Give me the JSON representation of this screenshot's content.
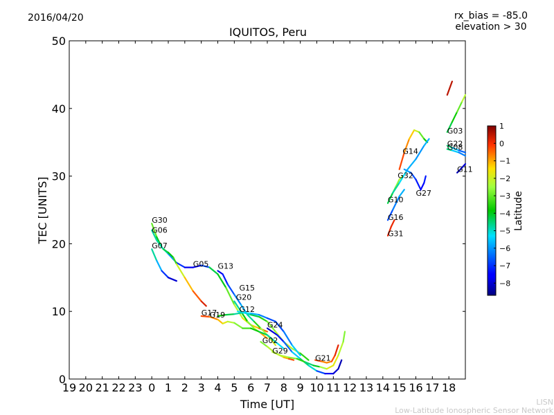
{
  "chart_data": {
    "type": "line",
    "date": "2016/04/20",
    "title": "IQUITOS, Peru",
    "annotation_lines": [
      "rx_bias = -85.0",
      "elevation > 30"
    ],
    "xlabel": "Time [UT]",
    "ylabel": "TEC [UNITS]",
    "xlim": [
      19,
      43
    ],
    "ylim": [
      0,
      50
    ],
    "x_ticks": [
      19,
      20,
      21,
      22,
      23,
      24,
      25,
      26,
      27,
      28,
      29,
      30,
      31,
      32,
      33,
      34,
      35,
      36,
      37,
      38,
      39,
      40,
      41,
      42
    ],
    "x_tick_labels": [
      "19",
      "20",
      "21",
      "22",
      "23",
      "0",
      "1",
      "2",
      "3",
      "4",
      "5",
      "6",
      "7",
      "8",
      "9",
      "10",
      "11",
      "12",
      "13",
      "14",
      "15",
      "16",
      "17",
      "18"
    ],
    "y_ticks": [
      0,
      10,
      20,
      30,
      40,
      50
    ],
    "y_tick_labels": [
      "0",
      "10",
      "20",
      "30",
      "40",
      "50"
    ],
    "colorbar": {
      "label": "Latitude",
      "range": [
        -8.7,
        1
      ],
      "ticks": [
        1,
        0,
        -1,
        -2,
        -3,
        -4,
        -5,
        -6,
        -7,
        -8
      ],
      "tick_labels": [
        "1",
        "0",
        "−1",
        "−2",
        "−3",
        "−4",
        "−5",
        "−6",
        "−7",
        "−8"
      ]
    },
    "series": [
      {
        "name": "G30",
        "label_at": [
          24.0,
          23.0
        ],
        "points": [
          [
            24.0,
            23.0,
            -2.5
          ],
          [
            24.3,
            21.0,
            -3.5
          ],
          [
            24.6,
            19.5,
            -4.5
          ],
          [
            25.0,
            18.5,
            -5.5
          ],
          [
            25.5,
            17.2,
            -6.5
          ],
          [
            26.0,
            16.5,
            -7.5
          ],
          [
            26.5,
            16.5,
            -8
          ],
          [
            27.0,
            16.8,
            -7.5
          ],
          [
            27.5,
            16.5,
            -6
          ]
        ]
      },
      {
        "name": "G06",
        "label_at": [
          24.0,
          21.5
        ],
        "points": [
          [
            24.0,
            22.0,
            -4.5
          ],
          [
            24.3,
            20.5,
            -5
          ],
          [
            24.7,
            19.2,
            -4.5
          ],
          [
            25.0,
            18.7,
            -4
          ],
          [
            25.3,
            18.0,
            -3.8
          ],
          [
            25.5,
            17.0,
            -3
          ]
        ]
      },
      {
        "name": "G07",
        "label_at": [
          24.0,
          19.2
        ],
        "points": [
          [
            24.0,
            19.2,
            -4.5
          ],
          [
            24.3,
            17.5,
            -5
          ],
          [
            24.6,
            16.0,
            -6.5
          ],
          [
            25.0,
            15.0,
            -7.5
          ],
          [
            25.5,
            14.5,
            -8.5
          ]
        ]
      },
      {
        "name": "G05",
        "label_at": [
          26.5,
          16.5
        ],
        "points": [
          [
            25.5,
            17.0,
            -2.5
          ],
          [
            26.0,
            15.0,
            -1.5
          ],
          [
            26.5,
            13.0,
            -0.8
          ],
          [
            27.0,
            11.5,
            0
          ],
          [
            27.3,
            10.8,
            0.5
          ]
        ]
      },
      {
        "name": "G13",
        "label_at": [
          28.0,
          16.2
        ],
        "points": [
          [
            27.5,
            16.5,
            -4
          ],
          [
            28.0,
            15.5,
            -4.5
          ],
          [
            28.5,
            13.5,
            -3.5
          ],
          [
            29.0,
            11.0,
            -2.5
          ],
          [
            29.5,
            9.0,
            -2
          ],
          [
            30.0,
            8.0,
            -1.5
          ],
          [
            30.5,
            7.5,
            -1
          ],
          [
            31.0,
            7.0,
            0
          ]
        ]
      },
      {
        "name": "G15",
        "label_at": [
          29.3,
          13.0
        ],
        "points": [
          [
            28.0,
            16.0,
            -8
          ],
          [
            28.3,
            15.5,
            -7.5
          ],
          [
            28.6,
            14.0,
            -7
          ],
          [
            29.0,
            12.5,
            -6.5
          ],
          [
            29.4,
            11.0,
            -6
          ],
          [
            29.8,
            9.5,
            -5.5
          ],
          [
            30.2,
            8.5,
            -4
          ],
          [
            30.6,
            7.5,
            -3
          ],
          [
            31.0,
            6.5,
            -2
          ],
          [
            31.5,
            5.0,
            -2
          ]
        ]
      },
      {
        "name": "G20",
        "label_at": [
          29.1,
          11.6
        ],
        "points": [
          [
            29.0,
            11.5,
            -5
          ],
          [
            29.4,
            10.0,
            -4.5
          ],
          [
            29.8,
            8.5,
            -3
          ],
          [
            30.2,
            7.5,
            -2.5
          ],
          [
            30.6,
            6.8,
            -2
          ],
          [
            31.0,
            6.0,
            0
          ]
        ]
      },
      {
        "name": "G12",
        "label_at": [
          29.3,
          9.8
        ],
        "points": [
          [
            29.2,
            10.0,
            -5.5
          ],
          [
            29.6,
            9.8,
            -5
          ],
          [
            30.0,
            9.5,
            -4.5
          ],
          [
            30.5,
            9.2,
            -4
          ],
          [
            31.0,
            8.5,
            -3
          ],
          [
            31.5,
            7.0,
            -2.5
          ],
          [
            32.0,
            5.5,
            -2
          ],
          [
            32.5,
            4.5,
            -2
          ],
          [
            33.0,
            3.8,
            -3
          ],
          [
            33.5,
            2.8,
            -4
          ]
        ]
      },
      {
        "name": "G17",
        "label_at": [
          27.0,
          9.3
        ],
        "points": [
          [
            27.0,
            9.3,
            0
          ],
          [
            27.5,
            9.2,
            -0.5
          ],
          [
            28.0,
            8.8,
            -0.8
          ],
          [
            28.3,
            8.2,
            -1.5
          ],
          [
            28.6,
            8.5,
            -2
          ],
          [
            29.0,
            8.3,
            -2.5
          ],
          [
            29.5,
            7.5,
            -3
          ],
          [
            30.0,
            7.5,
            -3.5
          ],
          [
            30.5,
            7.0,
            -4
          ],
          [
            31.0,
            6.5,
            -4.5
          ],
          [
            31.5,
            5.5,
            -5
          ],
          [
            32.0,
            4.5,
            -5.5
          ]
        ]
      },
      {
        "name": "G19",
        "label_at": [
          27.5,
          9.0
        ],
        "points": [
          [
            28.0,
            9.3,
            -3.5
          ],
          [
            28.5,
            9.5,
            -4
          ],
          [
            29.0,
            9.6,
            -4.5
          ],
          [
            29.5,
            9.8,
            -5
          ],
          [
            30.0,
            9.7,
            -5.5
          ],
          [
            30.5,
            9.5,
            -6
          ],
          [
            31.0,
            9.0,
            -6.5
          ],
          [
            31.5,
            8.5,
            -7
          ],
          [
            32.0,
            7.0,
            -6.5
          ],
          [
            32.5,
            5.0,
            -6
          ],
          [
            33.0,
            3.5,
            -5
          ]
        ]
      },
      {
        "name": "G24",
        "label_at": [
          31.0,
          7.5
        ],
        "points": [
          [
            31.0,
            7.5,
            -8
          ],
          [
            31.3,
            7.0,
            -8.3
          ],
          [
            31.6,
            6.5,
            -7.5
          ],
          [
            32.0,
            5.5,
            -7
          ],
          [
            32.5,
            4.0,
            -6
          ],
          [
            33.0,
            3.0,
            -5
          ],
          [
            33.5,
            2.0,
            -4
          ],
          [
            34.0,
            1.2,
            -6
          ],
          [
            34.5,
            0.8,
            -7.5
          ],
          [
            35.0,
            0.8,
            -8
          ],
          [
            35.3,
            1.5,
            -8
          ],
          [
            35.5,
            2.8,
            -8.5
          ]
        ]
      },
      {
        "name": "G02",
        "label_at": [
          30.7,
          5.2
        ],
        "points": [
          [
            30.6,
            5.5,
            -3
          ],
          [
            31.0,
            4.8,
            -2.5
          ],
          [
            31.5,
            3.8,
            -2
          ],
          [
            32.0,
            3.2,
            -1.5
          ],
          [
            32.3,
            3.0,
            -0.5
          ],
          [
            32.6,
            2.8,
            0
          ]
        ]
      },
      {
        "name": "G29",
        "label_at": [
          31.3,
          3.7
        ],
        "points": [
          [
            31.3,
            4.0,
            -2.5
          ],
          [
            31.8,
            3.5,
            -2
          ],
          [
            32.3,
            3.2,
            -2.5
          ],
          [
            32.8,
            3.0,
            -3
          ],
          [
            33.3,
            2.5,
            -4
          ],
          [
            33.8,
            2.0,
            -5
          ],
          [
            34.2,
            1.8,
            -3
          ],
          [
            34.6,
            1.5,
            -2
          ],
          [
            35.0,
            2.0,
            -1.5
          ],
          [
            35.3,
            3.5,
            -2
          ],
          [
            35.6,
            5.5,
            -2.5
          ],
          [
            35.7,
            7.0,
            -3
          ]
        ]
      },
      {
        "name": "G21",
        "label_at": [
          33.9,
          2.6
        ],
        "points": [
          [
            33.9,
            2.8,
            0
          ],
          [
            34.3,
            2.6,
            -0.5
          ],
          [
            34.6,
            2.4,
            -1
          ],
          [
            34.9,
            2.6,
            -0.5
          ],
          [
            35.1,
            3.5,
            0
          ],
          [
            35.3,
            5.0,
            0.3
          ]
        ]
      },
      {
        "name": "G14",
        "label_at": [
          39.2,
          33.2
        ],
        "points": [
          [
            39.0,
            31.0,
            0
          ],
          [
            39.3,
            33.5,
            -0.5
          ],
          [
            39.6,
            35.5,
            -1
          ],
          [
            39.9,
            36.8,
            -1.5
          ],
          [
            40.2,
            36.5,
            -2.5
          ],
          [
            40.5,
            35.5,
            -3.5
          ],
          [
            40.7,
            35.0,
            -4
          ]
        ]
      },
      {
        "name": "G32",
        "label_at": [
          38.9,
          29.6
        ],
        "points": [
          [
            38.5,
            27.0,
            -3
          ],
          [
            38.8,
            28.5,
            -2.8
          ],
          [
            39.0,
            29.5,
            -2.5
          ],
          [
            39.2,
            30.0,
            -2
          ]
        ]
      },
      {
        "name": "G10",
        "label_at": [
          38.3,
          26.0
        ],
        "points": [
          [
            38.3,
            26.0,
            -4
          ],
          [
            38.6,
            27.5,
            -4.5
          ],
          [
            39.0,
            29.0,
            -5
          ],
          [
            39.5,
            31.0,
            -5.5
          ],
          [
            40.0,
            32.5,
            -6
          ],
          [
            40.5,
            34.5,
            -6
          ],
          [
            40.8,
            35.5,
            -5.5
          ]
        ]
      },
      {
        "name": "G16",
        "label_at": [
          38.3,
          23.4
        ],
        "points": [
          [
            38.3,
            23.5,
            -7
          ],
          [
            38.6,
            25.0,
            -6.5
          ],
          [
            39.0,
            27.0,
            -6
          ],
          [
            39.3,
            28.0,
            -5.5
          ]
        ]
      },
      {
        "name": "G31",
        "label_at": [
          38.3,
          21.0
        ],
        "points": [
          [
            38.3,
            21.2,
            0
          ],
          [
            38.5,
            22.5,
            0.2
          ],
          [
            38.7,
            23.5,
            0
          ]
        ]
      },
      {
        "name": "G27",
        "label_at": [
          40.0,
          27.0
        ],
        "points": [
          [
            39.3,
            31.0,
            -5.5
          ],
          [
            39.7,
            30.5,
            -6.5
          ],
          [
            40.0,
            29.5,
            -7
          ],
          [
            40.3,
            28.0,
            -7.5
          ],
          [
            40.5,
            29.0,
            -7.5
          ],
          [
            40.6,
            30.0,
            -7
          ]
        ]
      },
      {
        "name": "G03",
        "label_at": [
          41.9,
          36.2
        ],
        "points": [
          [
            41.9,
            36.5,
            -4.5
          ],
          [
            42.2,
            38.0,
            -4
          ],
          [
            42.5,
            39.5,
            -3.5
          ],
          [
            42.8,
            41.0,
            -2.5
          ],
          [
            43.0,
            42.0,
            -2
          ]
        ]
      },
      {
        "name": "G22",
        "label_at": [
          41.9,
          34.3
        ],
        "points": [
          [
            41.9,
            34.5,
            -4
          ],
          [
            42.2,
            34.2,
            -5
          ],
          [
            42.6,
            33.8,
            -6
          ],
          [
            43.0,
            33.5,
            -7
          ]
        ]
      },
      {
        "name": "G08",
        "label_at": [
          41.9,
          33.8
        ],
        "points": [
          [
            41.9,
            34.0,
            -4
          ],
          [
            42.2,
            33.8,
            -5
          ],
          [
            42.6,
            33.5,
            -6
          ],
          [
            43.0,
            33.0,
            -6.5
          ]
        ]
      },
      {
        "name": "G11",
        "label_at": [
          42.5,
          30.5
        ],
        "points": [
          [
            42.5,
            30.5,
            -8.5
          ],
          [
            42.7,
            31.0,
            -8
          ],
          [
            43.0,
            31.8,
            -8
          ]
        ]
      },
      {
        "name": "",
        "label_at": null,
        "points": [
          [
            42.2,
            44.0,
            0.5
          ],
          [
            41.9,
            42.0,
            0.5
          ]
        ]
      }
    ],
    "legend": null,
    "grid": false
  },
  "footer": {
    "line1": "LISN",
    "line2": "Low-Latitude Ionospheric Sensor Network"
  }
}
